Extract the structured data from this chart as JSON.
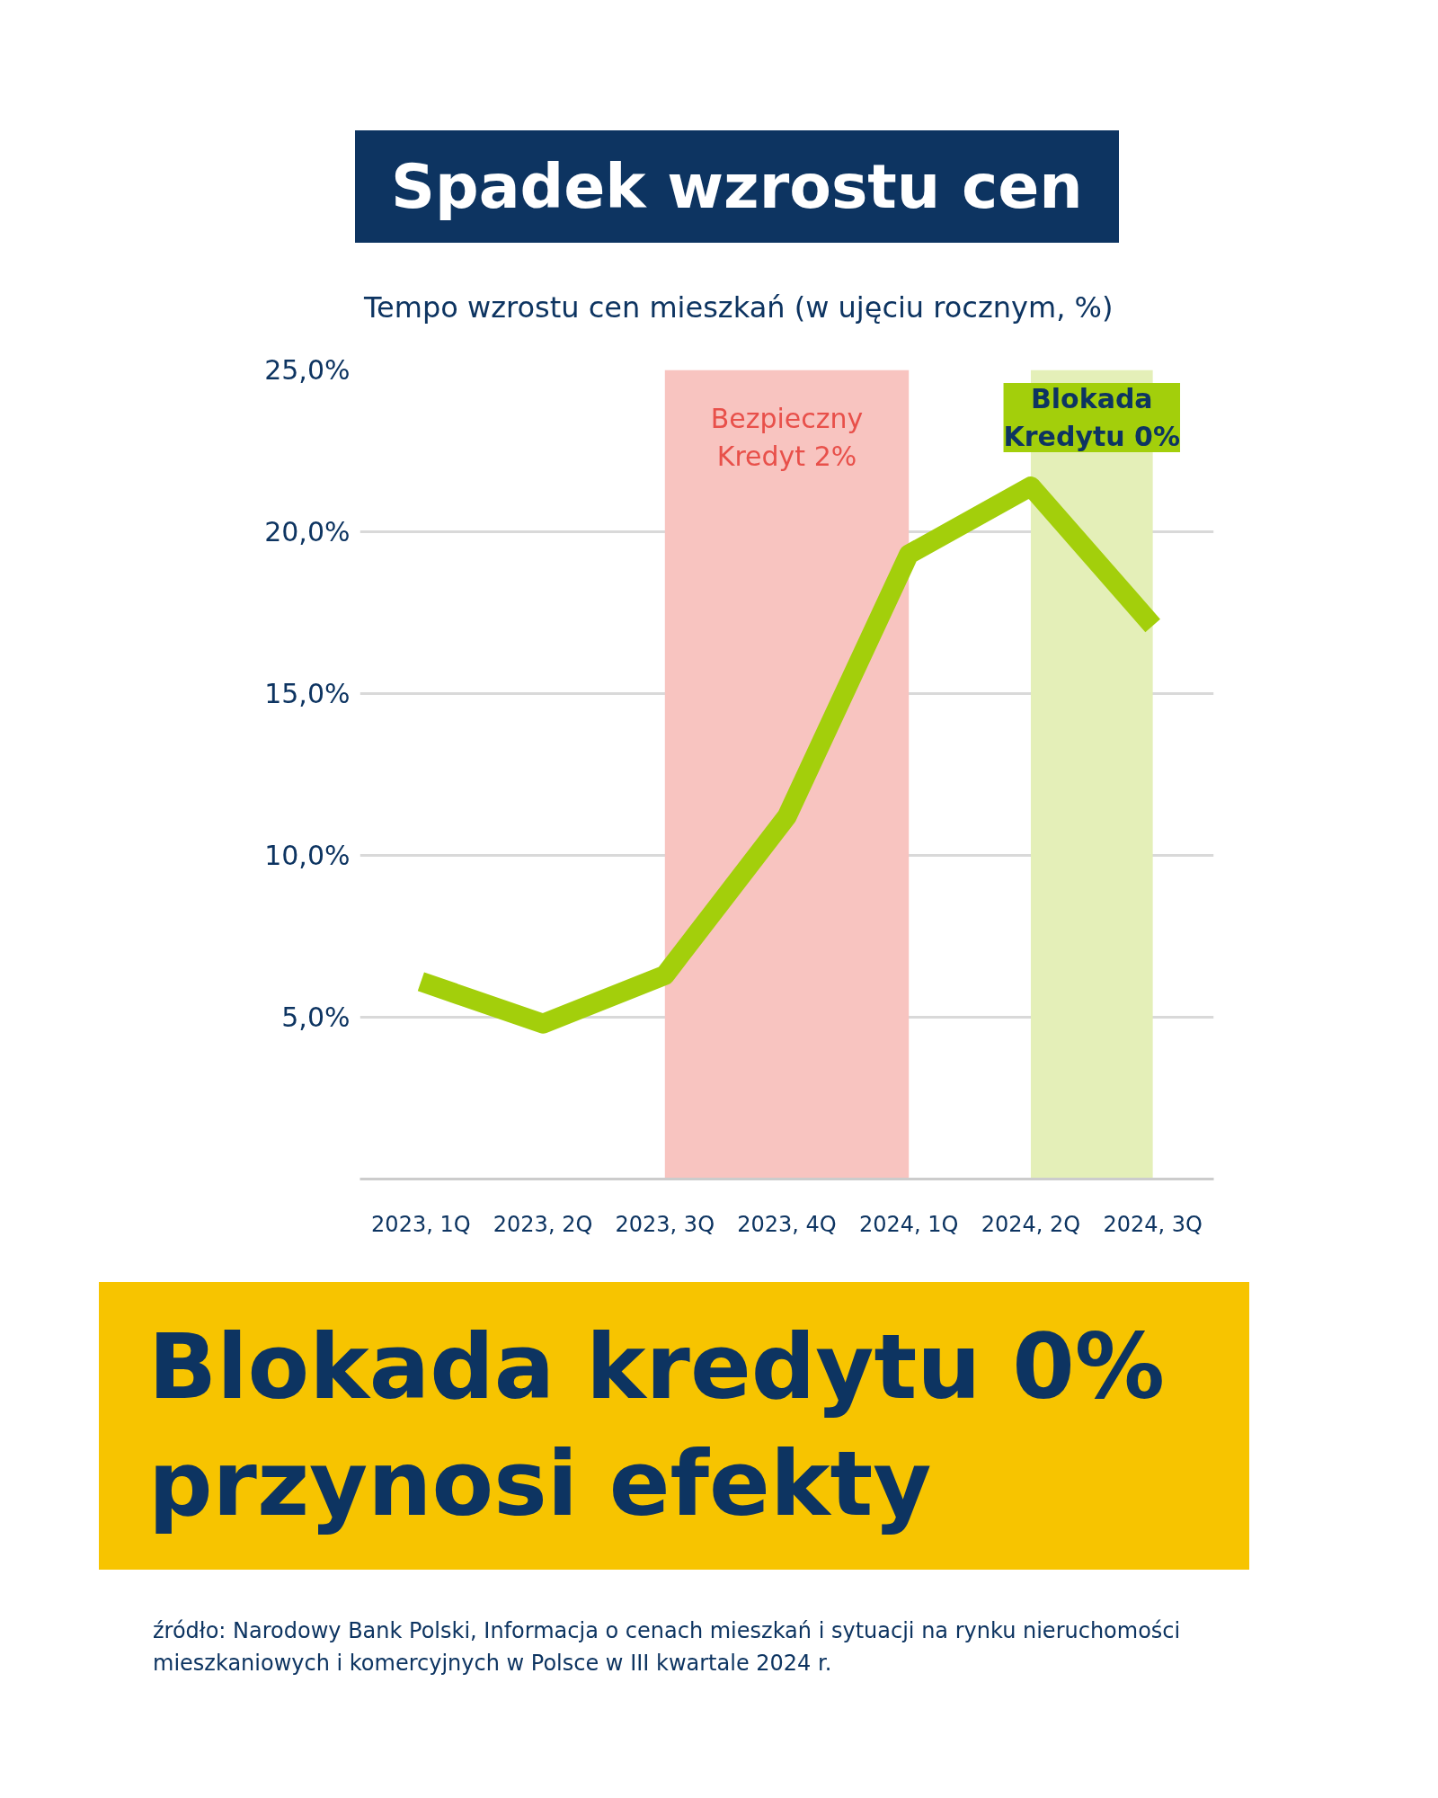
{
  "chart_data": {
    "type": "line",
    "title": "Spadek wzrostu cen",
    "subtitle": "Tempo wzrostu cen mieszkań (w ujęciu rocznym, %)",
    "categories": [
      "2023, 1Q",
      "2023, 2Q",
      "2023, 3Q",
      "2023, 4Q",
      "2024, 1Q",
      "2024, 2Q",
      "2024, 3Q"
    ],
    "series": [
      {
        "color": "#a3cf0b",
        "values": [
          6.1,
          4.8,
          6.3,
          11.2,
          19.3,
          21.4,
          17.1
        ]
      }
    ],
    "ylim": [
      0,
      25
    ],
    "yticks": [
      {
        "value": 5,
        "label": "5,0%"
      },
      {
        "value": 10,
        "label": "10,0%"
      },
      {
        "value": 15,
        "label": "15,0%"
      },
      {
        "value": 20,
        "label": "20,0%"
      },
      {
        "value": 25,
        "label": "25,0%"
      }
    ],
    "grid": "y",
    "marker": "none",
    "line_style": "solid",
    "bands": [
      {
        "axis": "x",
        "from": "2023, 3Q",
        "to": "2024, 1Q",
        "label": "Bezpieczny\nKredyt 2%",
        "color": "#f8c4c0"
      },
      {
        "axis": "x",
        "from": "2024, 2Q",
        "to": "2024, 3Q",
        "label": "Blokada\nKredytu 0%",
        "color": "#e4efb8"
      }
    ],
    "annotations": [
      "Blokada kredytu 0%\nprzynosi efekty",
      "źródło: Narodowy Bank Polski, Informacja o cenach mieszkań i sytuacji na rynku nieruchomości\nmieszkaniowych i komercyjnych w Polsce w III kwartale 2024 r."
    ]
  }
}
